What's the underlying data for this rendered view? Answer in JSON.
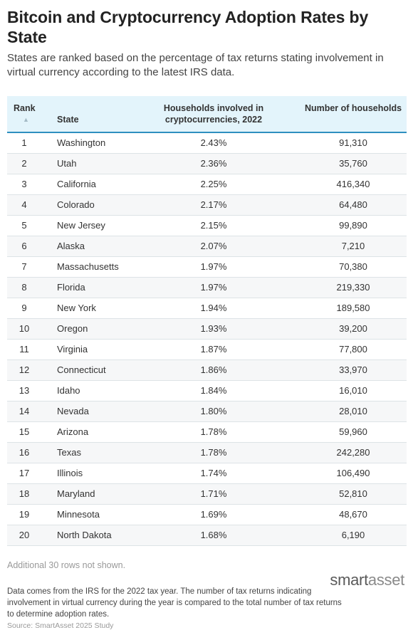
{
  "title": "Bitcoin and Cryptocurrency Adoption Rates by State",
  "subtitle": "States are ranked based on the percentage of tax returns stating involvement in virtual currency according to the latest IRS data.",
  "chart_data": {
    "type": "table",
    "columns": [
      "Rank",
      "State",
      "Households involved in cryptocurrencies, 2022",
      "Number of households"
    ],
    "sort_indicator": "▲",
    "rows": [
      {
        "rank": "1",
        "state": "Washington",
        "pct": "2.43%",
        "households": "91,310"
      },
      {
        "rank": "2",
        "state": "Utah",
        "pct": "2.36%",
        "households": "35,760"
      },
      {
        "rank": "3",
        "state": "California",
        "pct": "2.25%",
        "households": "416,340"
      },
      {
        "rank": "4",
        "state": "Colorado",
        "pct": "2.17%",
        "households": "64,480"
      },
      {
        "rank": "5",
        "state": "New Jersey",
        "pct": "2.15%",
        "households": "99,890"
      },
      {
        "rank": "6",
        "state": "Alaska",
        "pct": "2.07%",
        "households": "7,210"
      },
      {
        "rank": "7",
        "state": "Massachusetts",
        "pct": "1.97%",
        "households": "70,380"
      },
      {
        "rank": "8",
        "state": "Florida",
        "pct": "1.97%",
        "households": "219,330"
      },
      {
        "rank": "9",
        "state": "New York",
        "pct": "1.94%",
        "households": "189,580"
      },
      {
        "rank": "10",
        "state": "Oregon",
        "pct": "1.93%",
        "households": "39,200"
      },
      {
        "rank": "11",
        "state": "Virginia",
        "pct": "1.87%",
        "households": "77,800"
      },
      {
        "rank": "12",
        "state": "Connecticut",
        "pct": "1.86%",
        "households": "33,970"
      },
      {
        "rank": "13",
        "state": "Idaho",
        "pct": "1.84%",
        "households": "16,010"
      },
      {
        "rank": "14",
        "state": "Nevada",
        "pct": "1.80%",
        "households": "28,010"
      },
      {
        "rank": "15",
        "state": "Arizona",
        "pct": "1.78%",
        "households": "59,960"
      },
      {
        "rank": "16",
        "state": "Texas",
        "pct": "1.78%",
        "households": "242,280"
      },
      {
        "rank": "17",
        "state": "Illinois",
        "pct": "1.74%",
        "households": "106,490"
      },
      {
        "rank": "18",
        "state": "Maryland",
        "pct": "1.71%",
        "households": "52,810"
      },
      {
        "rank": "19",
        "state": "Minnesota",
        "pct": "1.69%",
        "households": "48,670"
      },
      {
        "rank": "20",
        "state": "North Dakota",
        "pct": "1.68%",
        "households": "6,190"
      }
    ],
    "footer_rows_note": "Additional 30 rows not shown."
  },
  "footnote": "Data comes from the IRS for the 2022 tax year. The number of tax returns indicating involvement in virtual currency during the year is compared to the total number of tax returns to determine adoption rates.",
  "source": "Source: SmartAsset 2025 Study",
  "logo": {
    "part1": "smart",
    "part2": "asset"
  },
  "colors": {
    "header_bg": "#e3f4fb",
    "header_rule": "#2e8fc0",
    "row_alt": "#f6f7f8"
  }
}
